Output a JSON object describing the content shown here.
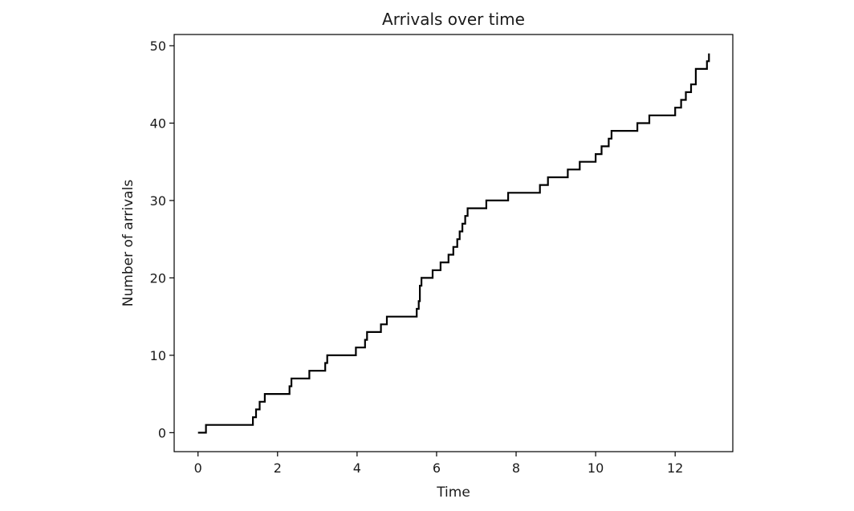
{
  "chart_data": {
    "type": "line",
    "title": "Arrivals over time",
    "xlabel": "Time",
    "ylabel": "Number of arrivals",
    "xlim": [
      -0.6,
      13.45
    ],
    "ylim": [
      -2.45,
      51.45
    ],
    "xticks": [
      0,
      2,
      4,
      6,
      8,
      10,
      12
    ],
    "yticks": [
      0,
      10,
      20,
      30,
      40,
      50
    ],
    "grid": false,
    "legend": "none",
    "line_color": "#000000",
    "series": [
      {
        "x": [
          0.0,
          0.2,
          1.38,
          1.46,
          1.55,
          1.68,
          2.0,
          2.3,
          2.35,
          2.8,
          3.2,
          3.25,
          3.97,
          4.2,
          4.25,
          4.6,
          4.75,
          5.5,
          5.55,
          5.58,
          5.62,
          5.9,
          6.1,
          6.3,
          6.42,
          6.52,
          6.58,
          6.65,
          6.72,
          6.78,
          7.25,
          7.8,
          8.6,
          8.8,
          9.3,
          9.6,
          10.0,
          10.15,
          10.33,
          10.4,
          11.05,
          11.35,
          12.0,
          12.15,
          12.27,
          12.4,
          12.52,
          12.63,
          12.8,
          12.85
        ],
        "y": [
          0,
          1,
          2,
          3,
          4,
          5,
          5,
          6,
          7,
          8,
          9,
          10,
          11,
          12,
          13,
          14,
          15,
          16,
          17,
          19,
          20,
          21,
          22,
          23,
          24,
          25,
          26,
          27,
          28,
          29,
          30,
          31,
          32,
          33,
          34,
          35,
          36,
          37,
          38,
          39,
          40,
          41,
          42,
          43,
          44,
          45,
          47,
          47,
          48,
          49
        ]
      }
    ]
  }
}
